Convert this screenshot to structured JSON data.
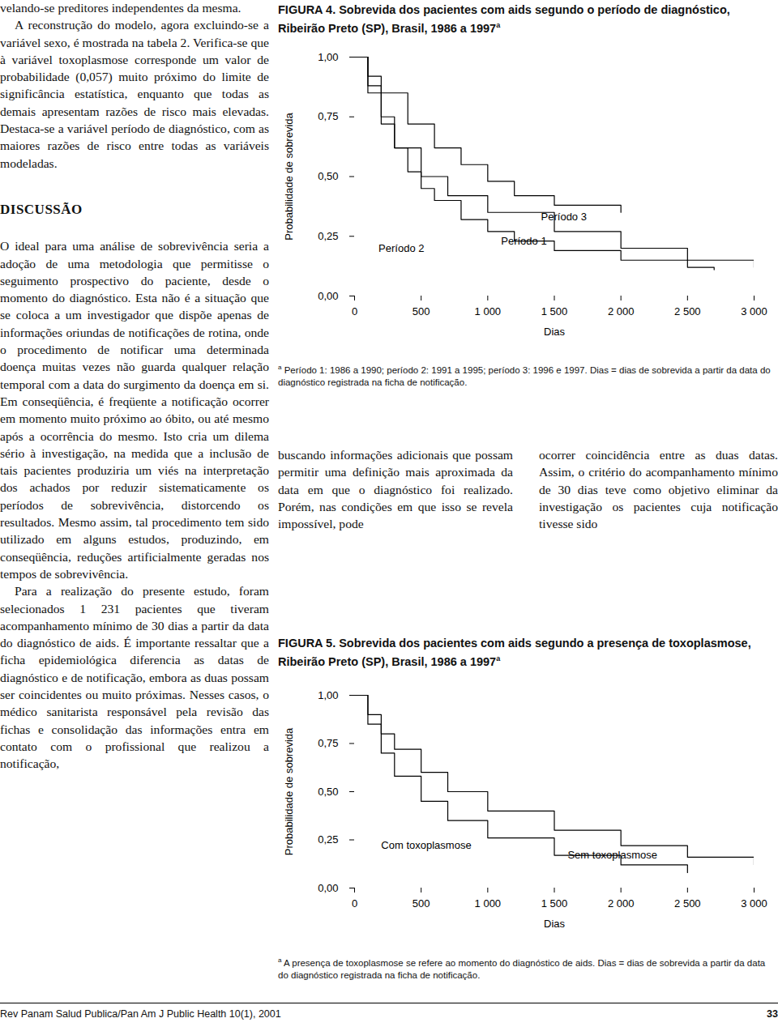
{
  "left_column": {
    "paragraphs_before": [
      {
        "text": "velando-se preditores independentes da mesma.",
        "indent": false
      },
      {
        "text": "A reconstrução do modelo, agora excluindo-se a variável sexo, é mostrada na tabela 2. Verifica-se que à variável toxoplasmose corresponde um valor de probabilidade (0,057) muito próximo do limite de significância estatística, enquanto que todas as demais apresentam razões de risco mais elevadas. Destaca-se a variável período de diagnóstico, com as maiores razões de risco entre todas as variáveis modeladas.",
        "indent": true
      }
    ],
    "heading": "DISCUSSÃO",
    "paragraphs_after": [
      {
        "text": "O ideal para uma análise de sobrevivência seria a adoção de uma metodologia que permitisse o seguimento prospectivo do paciente, desde o momento do diagnóstico. Esta não é a situação que se coloca a um investigador que dispõe apenas de informações oriundas de notificações de rotina, onde o procedimento de notificar uma determinada doença muitas vezes não guarda qualquer relação temporal com a data do surgimento da doença em si. Em conseqüência, é freqüente a notificação ocorrer em momento muito próximo ao óbito, ou até mesmo após a ocorrência do mesmo. Isto cria um dilema sério à investigação, na medida que a inclusão de tais pacientes produziria um viés na interpretação dos achados por reduzir sistematicamente os períodos de sobrevivência, distorcendo os resultados. Mesmo assim, tal procedimento tem sido utilizado em alguns estudos, produzindo, em conseqüência, reduções artificialmente geradas nos tempos de sobrevivência.",
        "indent": false
      },
      {
        "text": "Para a realização do presente estudo, foram selecionados 1 231 pacientes que tiveram acompanhamento mínimo de 30 dias a partir da data do diagnóstico de aids. É importante ressaltar que a ficha epidemiológica diferencia as datas de diagnóstico e de notificação, embora as duas possam ser coincidentes ou muito próximas. Nesses casos, o médico sanitarista responsável pela revisão das fichas e consolidação das informações entra em contato com o profissional que realizou a notificação,",
        "indent": true
      }
    ]
  },
  "middle_columns": [
    "buscando informações adicionais que possam permitir uma definição mais aproximada da data em que o diagnóstico foi realizado. Porém, nas condições em que isso se revela impossível, pode",
    "ocorrer coincidência entre as duas datas. Assim, o critério do acompanhamento mínimo de 30 dias teve como objetivo eliminar da investigação os pacientes cuja notificação tivesse sido"
  ],
  "footer": {
    "journal": "Rev Panam Salud Publica/Pan Am J Public Health 10(1), 2001",
    "page": "33"
  },
  "chart_data": [
    {
      "type": "line",
      "line_style": "step",
      "title": "FIGURA 4. Sobrevida dos pacientes com aids segundo o período de diagnóstico, Ribeirão Preto (SP), Brasil, 1986 a 1997",
      "title_marker": "a",
      "footnote_marker": "a",
      "footnote": "Período 1: 1986 a 1990; período 2: 1991 a 1995; período 3: 1996 e 1997. Dias = dias de sobrevida a partir da data do diagnóstico registrada na ficha de notificação.",
      "xlabel": "Dias",
      "ylabel": "Probabilidade de sobrevida",
      "xlim": [
        0,
        3000
      ],
      "xticks": [
        0,
        500,
        {
          "value": 1000,
          "label": "1 000"
        },
        {
          "value": 1500,
          "label": "1 500"
        },
        {
          "value": 2000,
          "label": "2 000"
        },
        {
          "value": 2500,
          "label": "2 500"
        },
        {
          "value": 3000,
          "label": "3 000"
        }
      ],
      "ylim": [
        0,
        1
      ],
      "yticks": [
        {
          "value": 0,
          "label": "0,00"
        },
        {
          "value": 0.25,
          "label": "0,25"
        },
        {
          "value": 0.5,
          "label": "0,50"
        },
        {
          "value": 0.75,
          "label": "0,75"
        },
        {
          "value": 1,
          "label": "1,00"
        }
      ],
      "series": [
        {
          "name": "Período 1",
          "color": "#000000",
          "x": [
            0,
            100,
            200,
            300,
            500,
            700,
            1000,
            1500,
            2000,
            2500,
            3000
          ],
          "values": [
            1,
            0.85,
            0.72,
            0.62,
            0.5,
            0.42,
            0.35,
            0.27,
            0.2,
            0.15,
            0.12
          ]
        },
        {
          "name": "Período 2",
          "color": "#000000",
          "x": [
            0,
            100,
            200,
            300,
            400,
            500,
            600,
            800,
            1000,
            1200,
            1500,
            2000,
            2500,
            2700
          ],
          "values": [
            1,
            0.88,
            0.75,
            0.62,
            0.52,
            0.45,
            0.4,
            0.32,
            0.27,
            0.23,
            0.19,
            0.15,
            0.12,
            0.11
          ]
        },
        {
          "name": "Período 3",
          "color": "#000000",
          "x": [
            0,
            100,
            200,
            400,
            600,
            800,
            1000,
            1200,
            1500,
            2000
          ],
          "values": [
            1,
            0.92,
            0.85,
            0.72,
            0.62,
            0.55,
            0.48,
            0.42,
            0.38,
            0.35
          ]
        }
      ],
      "annotations": [
        {
          "text": "Período 2",
          "x": 180,
          "y": 0.2
        },
        {
          "text": "Período 1",
          "x": 1100,
          "y": 0.23
        },
        {
          "text": "Período 3",
          "x": 1400,
          "y": 0.33
        }
      ]
    },
    {
      "type": "line",
      "line_style": "step",
      "title": "FIGURA 5. Sobrevida dos pacientes com aids segundo a presença de toxoplasmose, Ribeirão Preto (SP), Brasil, 1986 a 1997",
      "title_marker": "a",
      "footnote_marker": "a",
      "footnote": "A presença de toxoplasmose se refere ao momento do diagnóstico de aids. Dias = dias de sobrevida a partir da data do diagnóstico registrada na ficha de notificação.",
      "xlabel": "Dias",
      "ylabel": "Probabilidade de sobrevida",
      "xlim": [
        0,
        3000
      ],
      "xticks": [
        0,
        500,
        {
          "value": 1000,
          "label": "1 000"
        },
        {
          "value": 1500,
          "label": "1 500"
        },
        {
          "value": 2000,
          "label": "2 000"
        },
        {
          "value": 2500,
          "label": "2 500"
        },
        {
          "value": 3000,
          "label": "3 000"
        }
      ],
      "ylim": [
        0,
        1
      ],
      "yticks": [
        {
          "value": 0,
          "label": "0,00"
        },
        {
          "value": 0.25,
          "label": "0,25"
        },
        {
          "value": 0.5,
          "label": "0,50"
        },
        {
          "value": 0.75,
          "label": "0,75"
        },
        {
          "value": 1,
          "label": "1,00"
        }
      ],
      "series": [
        {
          "name": "Com toxoplasmose",
          "color": "#000000",
          "x": [
            0,
            100,
            200,
            300,
            500,
            700,
            1000,
            1500,
            2000,
            2500
          ],
          "values": [
            1,
            0.85,
            0.7,
            0.58,
            0.45,
            0.35,
            0.26,
            0.17,
            0.12,
            0.08
          ]
        },
        {
          "name": "Sem toxoplasmose",
          "color": "#000000",
          "x": [
            0,
            100,
            200,
            300,
            500,
            700,
            1000,
            1500,
            2000,
            2500,
            3000
          ],
          "values": [
            1,
            0.9,
            0.8,
            0.72,
            0.6,
            0.5,
            0.4,
            0.3,
            0.22,
            0.16,
            0.12
          ]
        }
      ],
      "annotations": [
        {
          "text": "Com toxoplasmose",
          "x": 200,
          "y": 0.22
        },
        {
          "text": "Sem toxoplasmose",
          "x": 1600,
          "y": 0.17
        }
      ]
    }
  ]
}
